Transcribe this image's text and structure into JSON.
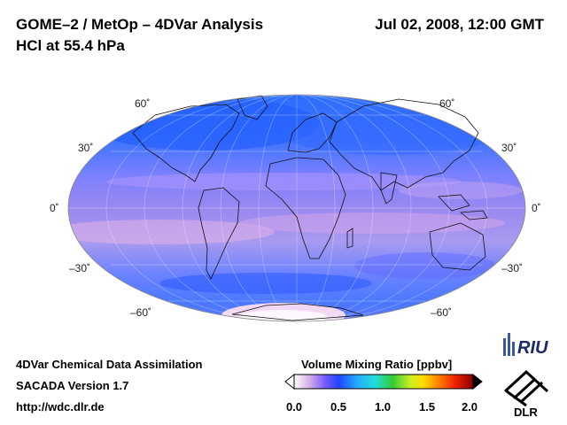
{
  "header": {
    "title_line1": "GOME–2 / MetOp – 4DVar Analysis",
    "title_line2": "HCl at 55.4 hPa",
    "date": "Jul 02, 2008, 12:00 GMT"
  },
  "map": {
    "projection": "mollweide",
    "lat_labels_left": [
      "60˚",
      "30˚",
      "0˚",
      "–30˚",
      "–60˚"
    ],
    "lat_labels_right": [
      "60˚",
      "30˚",
      "0˚",
      "–30˚",
      "–60˚"
    ]
  },
  "colorbar": {
    "title": "Volume Mixing Ratio [ppbv]",
    "ticks": [
      "0.0",
      "0.5",
      "1.0",
      "1.5",
      "2.0"
    ],
    "colors": [
      "#ffffff",
      "#d9b3e6",
      "#7a5cff",
      "#2244ff",
      "#22aaff",
      "#22dddd",
      "#33cc33",
      "#ccee22",
      "#ffdd00",
      "#ff8800",
      "#ee2200",
      "#880000"
    ]
  },
  "footer": {
    "line1": "4DVar Chemical Data Assimilation",
    "line2": "SACADA Version 1.7",
    "line3": "http://wdc.dlr.de"
  },
  "logos": {
    "riu": "RIU",
    "dlr": "DLR"
  }
}
